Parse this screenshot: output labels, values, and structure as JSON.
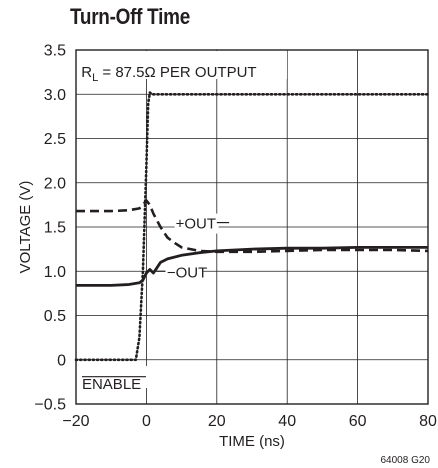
{
  "chart_data": {
    "type": "line",
    "title": "Turn-Off Time",
    "xlabel": "TIME (ns)",
    "ylabel": "VOLTAGE (V)",
    "xlim": [
      -20,
      80
    ],
    "ylim": [
      -0.5,
      3.5
    ],
    "xticks": [
      "−20",
      "0",
      "20",
      "40",
      "60",
      "80"
    ],
    "yticks": [
      "−0.5",
      "0",
      "0.5",
      "1.0",
      "1.5",
      "2.0",
      "2.5",
      "3.0",
      "3.5"
    ],
    "xtick_values": [
      -20,
      0,
      20,
      40,
      60,
      80
    ],
    "ytick_values": [
      -0.5,
      0,
      0.5,
      1.0,
      1.5,
      2.0,
      2.5,
      3.0,
      3.5
    ],
    "grid": true,
    "condition_prefix": "R",
    "condition_subscript": "L",
    "condition_rest": " = 87.5Ω PER OUTPUT",
    "figure_id": "64008 G20",
    "series": [
      {
        "name": "ENABLE",
        "style": "dotted",
        "x": [
          -20,
          -3,
          -2,
          -1,
          0,
          0.5,
          1,
          1.5,
          2,
          30,
          80
        ],
        "y": [
          0,
          0,
          0.25,
          1.0,
          2.2,
          2.9,
          3.02,
          3.0,
          3.0,
          3.0,
          3.0
        ]
      },
      {
        "name": "+OUT",
        "style": "dashed",
        "x": [
          -20,
          -10,
          -5,
          -2,
          -1,
          0,
          1,
          2,
          4,
          6,
          8,
          10,
          15,
          20,
          30,
          40,
          50,
          60,
          70,
          80
        ],
        "y": [
          1.68,
          1.68,
          1.69,
          1.71,
          1.75,
          1.8,
          1.75,
          1.65,
          1.5,
          1.38,
          1.32,
          1.27,
          1.23,
          1.22,
          1.22,
          1.23,
          1.24,
          1.24,
          1.24,
          1.23
        ]
      },
      {
        "name": "−OUT",
        "style": "solid",
        "x": [
          -20,
          -10,
          -5,
          -2,
          -1,
          0,
          1,
          2,
          3,
          4,
          6,
          10,
          15,
          20,
          30,
          40,
          50,
          60,
          70,
          80
        ],
        "y": [
          0.84,
          0.84,
          0.85,
          0.87,
          0.9,
          0.98,
          1.02,
          0.98,
          1.04,
          1.1,
          1.14,
          1.18,
          1.21,
          1.23,
          1.25,
          1.26,
          1.26,
          1.27,
          1.27,
          1.27
        ]
      }
    ],
    "annotations": [
      "+OUT",
      "−OUT",
      "ENABLE"
    ]
  }
}
